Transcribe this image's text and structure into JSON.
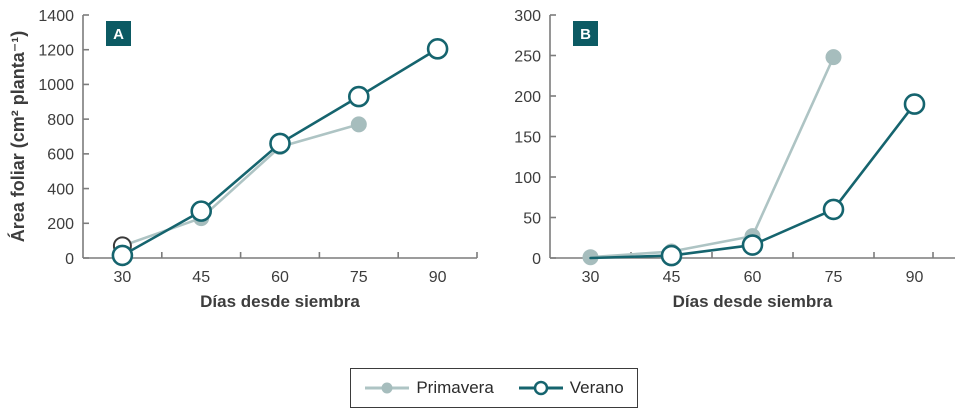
{
  "figure_title": "",
  "chart_data": [
    {
      "type": "line",
      "panel_label": "A",
      "xlabel": "Días desde siembra",
      "ylabel": "Área foliar (cm² planta⁻¹)",
      "x": [
        30,
        45,
        60,
        75,
        90
      ],
      "xlim_categories": true,
      "ylim": [
        0,
        1400
      ],
      "yticks": [
        0,
        200,
        400,
        600,
        800,
        1000,
        1200,
        1400
      ],
      "grid": false,
      "series": [
        {
          "name": "Primavera",
          "values": [
            70,
            230,
            640,
            770
          ],
          "markers": [
            "open-dark",
            "filled",
            "filled",
            "filled"
          ]
        },
        {
          "name": "Verano",
          "values": [
            15,
            270,
            660,
            930,
            1205
          ],
          "markers": [
            "open",
            "open",
            "open",
            "open",
            "open"
          ]
        }
      ]
    },
    {
      "type": "line",
      "panel_label": "B",
      "xlabel": "Días desde siembra",
      "ylabel": "",
      "x": [
        30,
        45,
        60,
        75,
        90
      ],
      "xlim_categories": true,
      "ylim": [
        0,
        300
      ],
      "yticks": [
        0,
        50,
        100,
        150,
        200,
        250,
        300
      ],
      "grid": false,
      "series": [
        {
          "name": "Primavera",
          "values": [
            1,
            8,
            27,
            248
          ],
          "markers": [
            "filled",
            "filled",
            "filled",
            "filled"
          ]
        },
        {
          "name": "Verano",
          "values": [
            0,
            3,
            16,
            60,
            190
          ],
          "markers": [
            "none",
            "open",
            "open",
            "open",
            "open"
          ]
        }
      ]
    }
  ],
  "legend": {
    "position": "bottom-center",
    "items": [
      {
        "label": "Primavera",
        "swatch": "filled-dot-line",
        "icon": "filled-circle-icon"
      },
      {
        "label": "Verano",
        "swatch": "open-dot-line",
        "icon": "open-circle-icon"
      }
    ]
  },
  "colors": {
    "background": "#ffffff",
    "primavera_line": "#aec4c4",
    "primavera_marker": "#a6bdbd",
    "verano_line": "#15646e",
    "open_marker_dark_stroke": "#3a3a3a",
    "panel_label_bg": "#0c5a63",
    "panel_label_text": "#ffffff",
    "axis": "#7c7c7c",
    "text": "#3d3d3d",
    "legend_border": "#3b3b3b"
  }
}
